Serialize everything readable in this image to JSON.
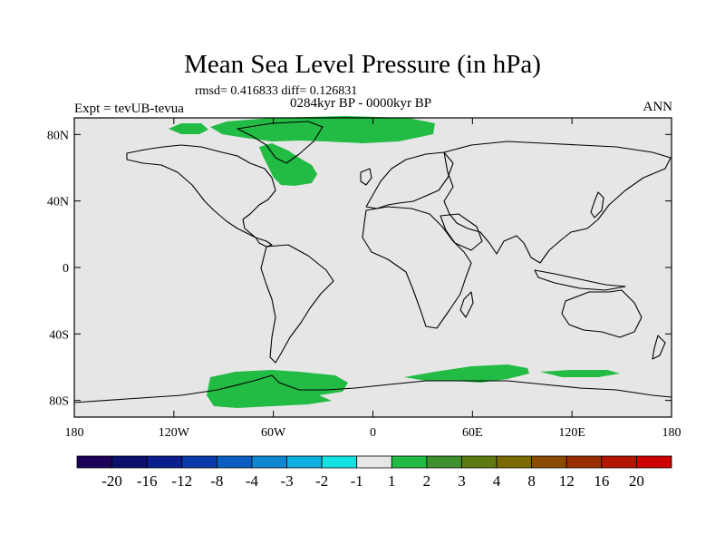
{
  "header": {
    "title": "Mean Sea Level Pressure (in hPa)",
    "stats": "rmsd= 0.416833  diff= 0.126831",
    "period": "0284kyr BP - 0000kyr BP",
    "experiment": "Expt = tevUB-tevua",
    "season": "ANN"
  },
  "axes": {
    "x_ticks": [
      "180",
      "120W",
      "60W",
      "0",
      "60E",
      "120E",
      "180"
    ],
    "x_values": [
      -180,
      -120,
      -60,
      0,
      60,
      120,
      180
    ],
    "y_ticks": [
      "80N",
      "40N",
      "0",
      "40S",
      "80S"
    ],
    "y_values": [
      80,
      40,
      0,
      -40,
      -80
    ],
    "lon_range": [
      -180,
      180
    ],
    "lat_range": [
      -90,
      90
    ]
  },
  "colorbar": {
    "labels": [
      "-20",
      "-16",
      "-12",
      "-8",
      "-4",
      "-3",
      "-2",
      "-1",
      "1",
      "2",
      "3",
      "4",
      "8",
      "12",
      "16",
      "20"
    ],
    "colors": [
      "#1c005a",
      "#0d0f6e",
      "#0a1f8c",
      "#0a3aa8",
      "#0a5ec0",
      "#0f86d2",
      "#0fb0e0",
      "#14e2e2",
      "#e6e6e6",
      "#22bb44",
      "#3f8f2e",
      "#5e7a12",
      "#7a6a00",
      "#8a4a00",
      "#9a2e00",
      "#b31500",
      "#cc0000"
    ]
  },
  "colors": {
    "ocean_background": "#e6e6e6",
    "positive_anomaly": "#22bb44",
    "coastline": "#000000"
  }
}
